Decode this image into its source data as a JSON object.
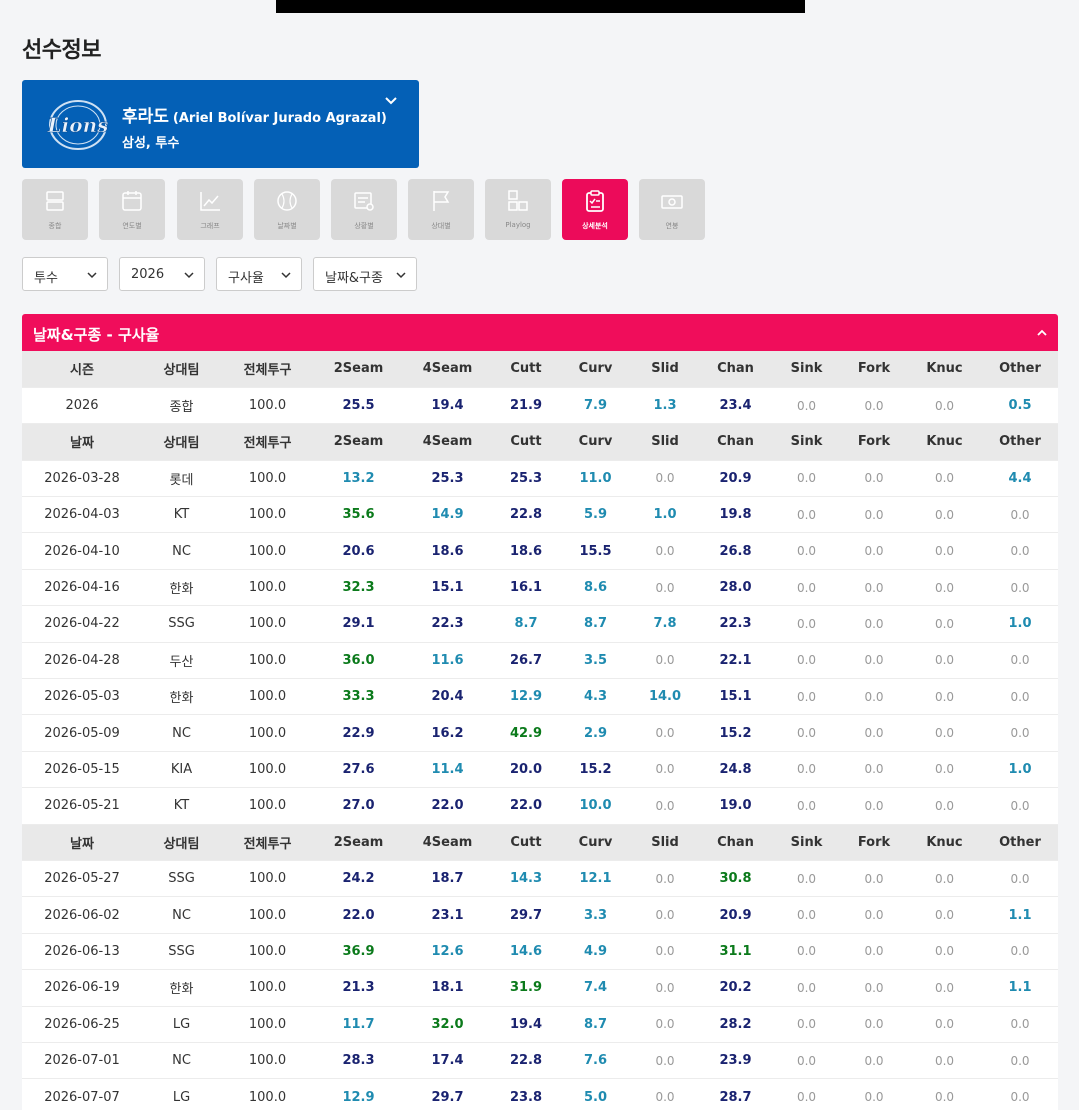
{
  "page_title": "선수정보",
  "player": {
    "name_ko": "후라도",
    "name_en": "(Ariel Bolívar Jurado Agrazal)",
    "sub": "삼성, 투수",
    "logo": "lions-logo"
  },
  "menu": [
    {
      "label": "종합",
      "icon": "summary-icon"
    },
    {
      "label": "연도별",
      "icon": "calendar-icon"
    },
    {
      "label": "그래프",
      "icon": "chart-icon"
    },
    {
      "label": "날짜별",
      "icon": "date-ball-icon"
    },
    {
      "label": "상황별",
      "icon": "situation-icon"
    },
    {
      "label": "상대별",
      "icon": "flag-icon"
    },
    {
      "label": "Playlog",
      "icon": "playlog-icon"
    },
    {
      "label": "상세분석",
      "icon": "clipboard-icon",
      "active": true
    },
    {
      "label": "연봉",
      "icon": "money-icon"
    }
  ],
  "filters": [
    "투수",
    "2026",
    "구사율",
    "날짜&구종"
  ],
  "panel_title": "날짜&구종 - 구사율",
  "season_headers": [
    "시즌",
    "상대팀",
    "전체투구",
    "2Seam",
    "4Seam",
    "Cutt",
    "Curv",
    "Slid",
    "Chan",
    "Sink",
    "Fork",
    "Knuc",
    "Other"
  ],
  "date_headers": [
    "날짜",
    "상대팀",
    "전체투구",
    "2Seam",
    "4Seam",
    "Cutt",
    "Curv",
    "Slid",
    "Chan",
    "Sink",
    "Fork",
    "Knuc",
    "Other"
  ],
  "season_row": [
    "2026",
    "종합",
    "100.0",
    "25.5",
    "19.4",
    "21.9",
    "7.9",
    "1.3",
    "23.4",
    "0.0",
    "0.0",
    "0.0",
    "0.5"
  ],
  "season_colors": [
    "",
    "",
    "",
    "navy",
    "navy",
    "navy",
    "teal",
    "teal",
    "navy",
    "grey",
    "grey",
    "grey",
    "teal"
  ],
  "block1": [
    {
      "cells": [
        "2026-03-28",
        "롯데",
        "100.0",
        "13.2",
        "25.3",
        "25.3",
        "11.0",
        "0.0",
        "20.9",
        "0.0",
        "0.0",
        "0.0",
        "4.4"
      ],
      "colors": [
        "teal",
        "navy",
        "navy",
        "teal",
        "grey",
        "navy",
        "grey",
        "grey",
        "grey",
        "teal"
      ]
    },
    {
      "cells": [
        "2026-04-03",
        "KT",
        "100.0",
        "35.6",
        "14.9",
        "22.8",
        "5.9",
        "1.0",
        "19.8",
        "0.0",
        "0.0",
        "0.0",
        "0.0"
      ],
      "colors": [
        "green",
        "teal",
        "navy",
        "teal",
        "teal",
        "navy",
        "grey",
        "grey",
        "grey",
        "grey"
      ]
    },
    {
      "cells": [
        "2026-04-10",
        "NC",
        "100.0",
        "20.6",
        "18.6",
        "18.6",
        "15.5",
        "0.0",
        "26.8",
        "0.0",
        "0.0",
        "0.0",
        "0.0"
      ],
      "colors": [
        "navy",
        "navy",
        "navy",
        "navy",
        "grey",
        "navy",
        "grey",
        "grey",
        "grey",
        "grey"
      ]
    },
    {
      "cells": [
        "2026-04-16",
        "한화",
        "100.0",
        "32.3",
        "15.1",
        "16.1",
        "8.6",
        "0.0",
        "28.0",
        "0.0",
        "0.0",
        "0.0",
        "0.0"
      ],
      "colors": [
        "green",
        "navy",
        "navy",
        "teal",
        "grey",
        "navy",
        "grey",
        "grey",
        "grey",
        "grey"
      ]
    },
    {
      "cells": [
        "2026-04-22",
        "SSG",
        "100.0",
        "29.1",
        "22.3",
        "8.7",
        "8.7",
        "7.8",
        "22.3",
        "0.0",
        "0.0",
        "0.0",
        "1.0"
      ],
      "colors": [
        "navy",
        "navy",
        "teal",
        "teal",
        "teal",
        "navy",
        "grey",
        "grey",
        "grey",
        "teal"
      ]
    },
    {
      "cells": [
        "2026-04-28",
        "두산",
        "100.0",
        "36.0",
        "11.6",
        "26.7",
        "3.5",
        "0.0",
        "22.1",
        "0.0",
        "0.0",
        "0.0",
        "0.0"
      ],
      "colors": [
        "green",
        "teal",
        "navy",
        "teal",
        "grey",
        "navy",
        "grey",
        "grey",
        "grey",
        "grey"
      ]
    },
    {
      "cells": [
        "2026-05-03",
        "한화",
        "100.0",
        "33.3",
        "20.4",
        "12.9",
        "4.3",
        "14.0",
        "15.1",
        "0.0",
        "0.0",
        "0.0",
        "0.0"
      ],
      "colors": [
        "green",
        "navy",
        "teal",
        "teal",
        "teal",
        "navy",
        "grey",
        "grey",
        "grey",
        "grey"
      ]
    },
    {
      "cells": [
        "2026-05-09",
        "NC",
        "100.0",
        "22.9",
        "16.2",
        "42.9",
        "2.9",
        "0.0",
        "15.2",
        "0.0",
        "0.0",
        "0.0",
        "0.0"
      ],
      "colors": [
        "navy",
        "navy",
        "green",
        "teal",
        "grey",
        "navy",
        "grey",
        "grey",
        "grey",
        "grey"
      ]
    },
    {
      "cells": [
        "2026-05-15",
        "KIA",
        "100.0",
        "27.6",
        "11.4",
        "20.0",
        "15.2",
        "0.0",
        "24.8",
        "0.0",
        "0.0",
        "0.0",
        "1.0"
      ],
      "colors": [
        "navy",
        "teal",
        "navy",
        "navy",
        "grey",
        "navy",
        "grey",
        "grey",
        "grey",
        "teal"
      ]
    },
    {
      "cells": [
        "2026-05-21",
        "KT",
        "100.0",
        "27.0",
        "22.0",
        "22.0",
        "10.0",
        "0.0",
        "19.0",
        "0.0",
        "0.0",
        "0.0",
        "0.0"
      ],
      "colors": [
        "navy",
        "navy",
        "navy",
        "teal",
        "grey",
        "navy",
        "grey",
        "grey",
        "grey",
        "grey"
      ]
    }
  ],
  "block2": [
    {
      "cells": [
        "2026-05-27",
        "SSG",
        "100.0",
        "24.2",
        "18.7",
        "14.3",
        "12.1",
        "0.0",
        "30.8",
        "0.0",
        "0.0",
        "0.0",
        "0.0"
      ],
      "colors": [
        "navy",
        "navy",
        "teal",
        "teal",
        "grey",
        "green",
        "grey",
        "grey",
        "grey",
        "grey"
      ]
    },
    {
      "cells": [
        "2026-06-02",
        "NC",
        "100.0",
        "22.0",
        "23.1",
        "29.7",
        "3.3",
        "0.0",
        "20.9",
        "0.0",
        "0.0",
        "0.0",
        "1.1"
      ],
      "colors": [
        "navy",
        "navy",
        "navy",
        "teal",
        "grey",
        "navy",
        "grey",
        "grey",
        "grey",
        "teal"
      ]
    },
    {
      "cells": [
        "2026-06-13",
        "SSG",
        "100.0",
        "36.9",
        "12.6",
        "14.6",
        "4.9",
        "0.0",
        "31.1",
        "0.0",
        "0.0",
        "0.0",
        "0.0"
      ],
      "colors": [
        "green",
        "teal",
        "teal",
        "teal",
        "grey",
        "green",
        "grey",
        "grey",
        "grey",
        "grey"
      ]
    },
    {
      "cells": [
        "2026-06-19",
        "한화",
        "100.0",
        "21.3",
        "18.1",
        "31.9",
        "7.4",
        "0.0",
        "20.2",
        "0.0",
        "0.0",
        "0.0",
        "1.1"
      ],
      "colors": [
        "navy",
        "navy",
        "green",
        "teal",
        "grey",
        "navy",
        "grey",
        "grey",
        "grey",
        "teal"
      ]
    },
    {
      "cells": [
        "2026-06-25",
        "LG",
        "100.0",
        "11.7",
        "32.0",
        "19.4",
        "8.7",
        "0.0",
        "28.2",
        "0.0",
        "0.0",
        "0.0",
        "0.0"
      ],
      "colors": [
        "teal",
        "green",
        "navy",
        "teal",
        "grey",
        "navy",
        "grey",
        "grey",
        "grey",
        "grey"
      ]
    },
    {
      "cells": [
        "2026-07-01",
        "NC",
        "100.0",
        "28.3",
        "17.4",
        "22.8",
        "7.6",
        "0.0",
        "23.9",
        "0.0",
        "0.0",
        "0.0",
        "0.0"
      ],
      "colors": [
        "navy",
        "navy",
        "navy",
        "teal",
        "grey",
        "navy",
        "grey",
        "grey",
        "grey",
        "grey"
      ]
    },
    {
      "cells": [
        "2026-07-07",
        "LG",
        "100.0",
        "12.9",
        "29.7",
        "23.8",
        "5.0",
        "0.0",
        "28.7",
        "0.0",
        "0.0",
        "0.0",
        "0.0"
      ],
      "colors": [
        "teal",
        "navy",
        "navy",
        "teal",
        "grey",
        "navy",
        "grey",
        "grey",
        "grey",
        "grey"
      ]
    }
  ],
  "colors": {
    "brand_blue": "#0460b6",
    "accent_pink": "#f00d5b",
    "navy": "#1a2370",
    "green": "#0b7a1b",
    "teal": "#1f8bb0"
  }
}
